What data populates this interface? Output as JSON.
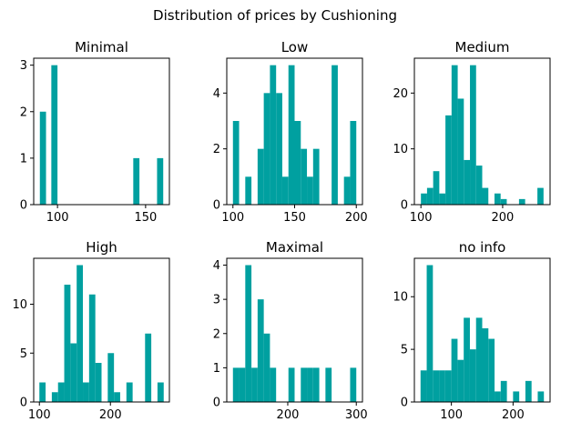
{
  "figure": {
    "suptitle": "Distribution of prices by Cushioning",
    "bar_color": "#00a0a0"
  },
  "chart_data": [
    {
      "type": "bar",
      "title": "Minimal",
      "xlim": [
        86.5,
        163.5
      ],
      "ylim": [
        0,
        3.15
      ],
      "xticks": [
        100,
        150
      ],
      "yticks": [
        0,
        1,
        2,
        3
      ],
      "bins": [
        {
          "x0": 90,
          "x1": 93.5,
          "count": 2
        },
        {
          "x0": 96.5,
          "x1": 100,
          "count": 3
        },
        {
          "x0": 143,
          "x1": 146.5,
          "count": 1
        },
        {
          "x0": 156.5,
          "x1": 160,
          "count": 1
        }
      ]
    },
    {
      "type": "bar",
      "title": "Low",
      "xlim": [
        95,
        205
      ],
      "ylim": [
        0,
        5.25
      ],
      "xticks": [
        100,
        150,
        200
      ],
      "yticks": [
        0,
        2,
        4
      ],
      "bins": [
        {
          "x0": 100,
          "x1": 105,
          "count": 3
        },
        {
          "x0": 105,
          "x1": 110,
          "count": 0
        },
        {
          "x0": 110,
          "x1": 115,
          "count": 1
        },
        {
          "x0": 115,
          "x1": 120,
          "count": 0
        },
        {
          "x0": 120,
          "x1": 125,
          "count": 2
        },
        {
          "x0": 125,
          "x1": 130,
          "count": 4
        },
        {
          "x0": 130,
          "x1": 135,
          "count": 5
        },
        {
          "x0": 135,
          "x1": 140,
          "count": 4
        },
        {
          "x0": 140,
          "x1": 145,
          "count": 1
        },
        {
          "x0": 145,
          "x1": 150,
          "count": 5
        },
        {
          "x0": 150,
          "x1": 155,
          "count": 3
        },
        {
          "x0": 155,
          "x1": 160,
          "count": 2
        },
        {
          "x0": 160,
          "x1": 165,
          "count": 1
        },
        {
          "x0": 165,
          "x1": 170,
          "count": 2
        },
        {
          "x0": 170,
          "x1": 175,
          "count": 0
        },
        {
          "x0": 175,
          "x1": 180,
          "count": 0
        },
        {
          "x0": 180,
          "x1": 185,
          "count": 5
        },
        {
          "x0": 185,
          "x1": 190,
          "count": 0
        },
        {
          "x0": 190,
          "x1": 195,
          "count": 1
        },
        {
          "x0": 195,
          "x1": 200,
          "count": 3
        }
      ]
    },
    {
      "type": "bar",
      "title": "Medium",
      "xlim": [
        92,
        258
      ],
      "ylim": [
        0,
        26.25
      ],
      "xticks": [
        100,
        200
      ],
      "yticks": [
        0,
        10,
        20
      ],
      "bins": [
        {
          "x0": 100,
          "x1": 107.5,
          "count": 2
        },
        {
          "x0": 107.5,
          "x1": 115,
          "count": 3
        },
        {
          "x0": 115,
          "x1": 122.5,
          "count": 6
        },
        {
          "x0": 122.5,
          "x1": 130,
          "count": 2
        },
        {
          "x0": 130,
          "x1": 137.5,
          "count": 16
        },
        {
          "x0": 137.5,
          "x1": 145,
          "count": 25
        },
        {
          "x0": 145,
          "x1": 152.5,
          "count": 19
        },
        {
          "x0": 152.5,
          "x1": 160,
          "count": 8
        },
        {
          "x0": 160,
          "x1": 167.5,
          "count": 25
        },
        {
          "x0": 167.5,
          "x1": 175,
          "count": 7
        },
        {
          "x0": 175,
          "x1": 182.5,
          "count": 3
        },
        {
          "x0": 182.5,
          "x1": 190,
          "count": 0
        },
        {
          "x0": 190,
          "x1": 197.5,
          "count": 2
        },
        {
          "x0": 197.5,
          "x1": 205,
          "count": 1
        },
        {
          "x0": 205,
          "x1": 212.5,
          "count": 0
        },
        {
          "x0": 212.5,
          "x1": 220,
          "count": 0
        },
        {
          "x0": 220,
          "x1": 227.5,
          "count": 1
        },
        {
          "x0": 227.5,
          "x1": 235,
          "count": 0
        },
        {
          "x0": 235,
          "x1": 242.5,
          "count": 0
        },
        {
          "x0": 242.5,
          "x1": 250,
          "count": 3
        }
      ]
    },
    {
      "type": "bar",
      "title": "High",
      "xlim": [
        92,
        283
      ],
      "ylim": [
        0,
        14.7
      ],
      "xticks": [
        100,
        200
      ],
      "yticks": [
        0,
        5,
        10
      ],
      "bins": [
        {
          "x0": 100,
          "x1": 108.75,
          "count": 2
        },
        {
          "x0": 108.75,
          "x1": 117.5,
          "count": 0
        },
        {
          "x0": 117.5,
          "x1": 126.25,
          "count": 1
        },
        {
          "x0": 126.25,
          "x1": 135,
          "count": 2
        },
        {
          "x0": 135,
          "x1": 143.75,
          "count": 12
        },
        {
          "x0": 143.75,
          "x1": 152.5,
          "count": 6
        },
        {
          "x0": 152.5,
          "x1": 161.25,
          "count": 14
        },
        {
          "x0": 161.25,
          "x1": 170,
          "count": 2
        },
        {
          "x0": 170,
          "x1": 178.75,
          "count": 11
        },
        {
          "x0": 178.75,
          "x1": 187.5,
          "count": 4
        },
        {
          "x0": 187.5,
          "x1": 196.25,
          "count": 0
        },
        {
          "x0": 196.25,
          "x1": 205,
          "count": 5
        },
        {
          "x0": 205,
          "x1": 213.75,
          "count": 1
        },
        {
          "x0": 213.75,
          "x1": 222.5,
          "count": 0
        },
        {
          "x0": 222.5,
          "x1": 231.25,
          "count": 2
        },
        {
          "x0": 231.25,
          "x1": 240,
          "count": 0
        },
        {
          "x0": 240,
          "x1": 248.75,
          "count": 0
        },
        {
          "x0": 248.75,
          "x1": 257.5,
          "count": 7
        },
        {
          "x0": 257.5,
          "x1": 266.25,
          "count": 0
        },
        {
          "x0": 266.25,
          "x1": 275,
          "count": 2
        }
      ]
    },
    {
      "type": "bar",
      "title": "Maximal",
      "xlim": [
        111,
        309
      ],
      "ylim": [
        0,
        4.2
      ],
      "xticks": [
        200,
        300
      ],
      "yticks": [
        0,
        1,
        2,
        3,
        4
      ],
      "bins": [
        {
          "x0": 120,
          "x1": 129,
          "count": 1
        },
        {
          "x0": 129,
          "x1": 138,
          "count": 1
        },
        {
          "x0": 138,
          "x1": 147,
          "count": 4
        },
        {
          "x0": 147,
          "x1": 156,
          "count": 1
        },
        {
          "x0": 156,
          "x1": 165,
          "count": 3
        },
        {
          "x0": 165,
          "x1": 174,
          "count": 2
        },
        {
          "x0": 174,
          "x1": 183,
          "count": 1
        },
        {
          "x0": 183,
          "x1": 192,
          "count": 0
        },
        {
          "x0": 192,
          "x1": 201,
          "count": 0
        },
        {
          "x0": 201,
          "x1": 210,
          "count": 1
        },
        {
          "x0": 210,
          "x1": 219,
          "count": 0
        },
        {
          "x0": 219,
          "x1": 228,
          "count": 1
        },
        {
          "x0": 228,
          "x1": 237,
          "count": 1
        },
        {
          "x0": 237,
          "x1": 246,
          "count": 1
        },
        {
          "x0": 246,
          "x1": 255,
          "count": 0
        },
        {
          "x0": 255,
          "x1": 264,
          "count": 1
        },
        {
          "x0": 264,
          "x1": 273,
          "count": 0
        },
        {
          "x0": 273,
          "x1": 282,
          "count": 0
        },
        {
          "x0": 282,
          "x1": 291,
          "count": 0
        },
        {
          "x0": 291,
          "x1": 300,
          "count": 1
        }
      ]
    },
    {
      "type": "bar",
      "title": "no info",
      "xlim": [
        40,
        260
      ],
      "ylim": [
        0,
        13.65
      ],
      "xticks": [
        100,
        200
      ],
      "yticks": [
        0,
        5,
        10
      ],
      "bins": [
        {
          "x0": 50,
          "x1": 60,
          "count": 3
        },
        {
          "x0": 60,
          "x1": 70,
          "count": 13
        },
        {
          "x0": 70,
          "x1": 80,
          "count": 3
        },
        {
          "x0": 80,
          "x1": 90,
          "count": 3
        },
        {
          "x0": 90,
          "x1": 100,
          "count": 3
        },
        {
          "x0": 100,
          "x1": 110,
          "count": 6
        },
        {
          "x0": 110,
          "x1": 120,
          "count": 4
        },
        {
          "x0": 120,
          "x1": 130,
          "count": 8
        },
        {
          "x0": 130,
          "x1": 140,
          "count": 5
        },
        {
          "x0": 140,
          "x1": 150,
          "count": 8
        },
        {
          "x0": 150,
          "x1": 160,
          "count": 7
        },
        {
          "x0": 160,
          "x1": 170,
          "count": 6
        },
        {
          "x0": 170,
          "x1": 180,
          "count": 1
        },
        {
          "x0": 180,
          "x1": 190,
          "count": 2
        },
        {
          "x0": 190,
          "x1": 200,
          "count": 0
        },
        {
          "x0": 200,
          "x1": 210,
          "count": 1
        },
        {
          "x0": 210,
          "x1": 220,
          "count": 0
        },
        {
          "x0": 220,
          "x1": 230,
          "count": 2
        },
        {
          "x0": 230,
          "x1": 240,
          "count": 0
        },
        {
          "x0": 240,
          "x1": 250,
          "count": 1
        }
      ]
    }
  ]
}
